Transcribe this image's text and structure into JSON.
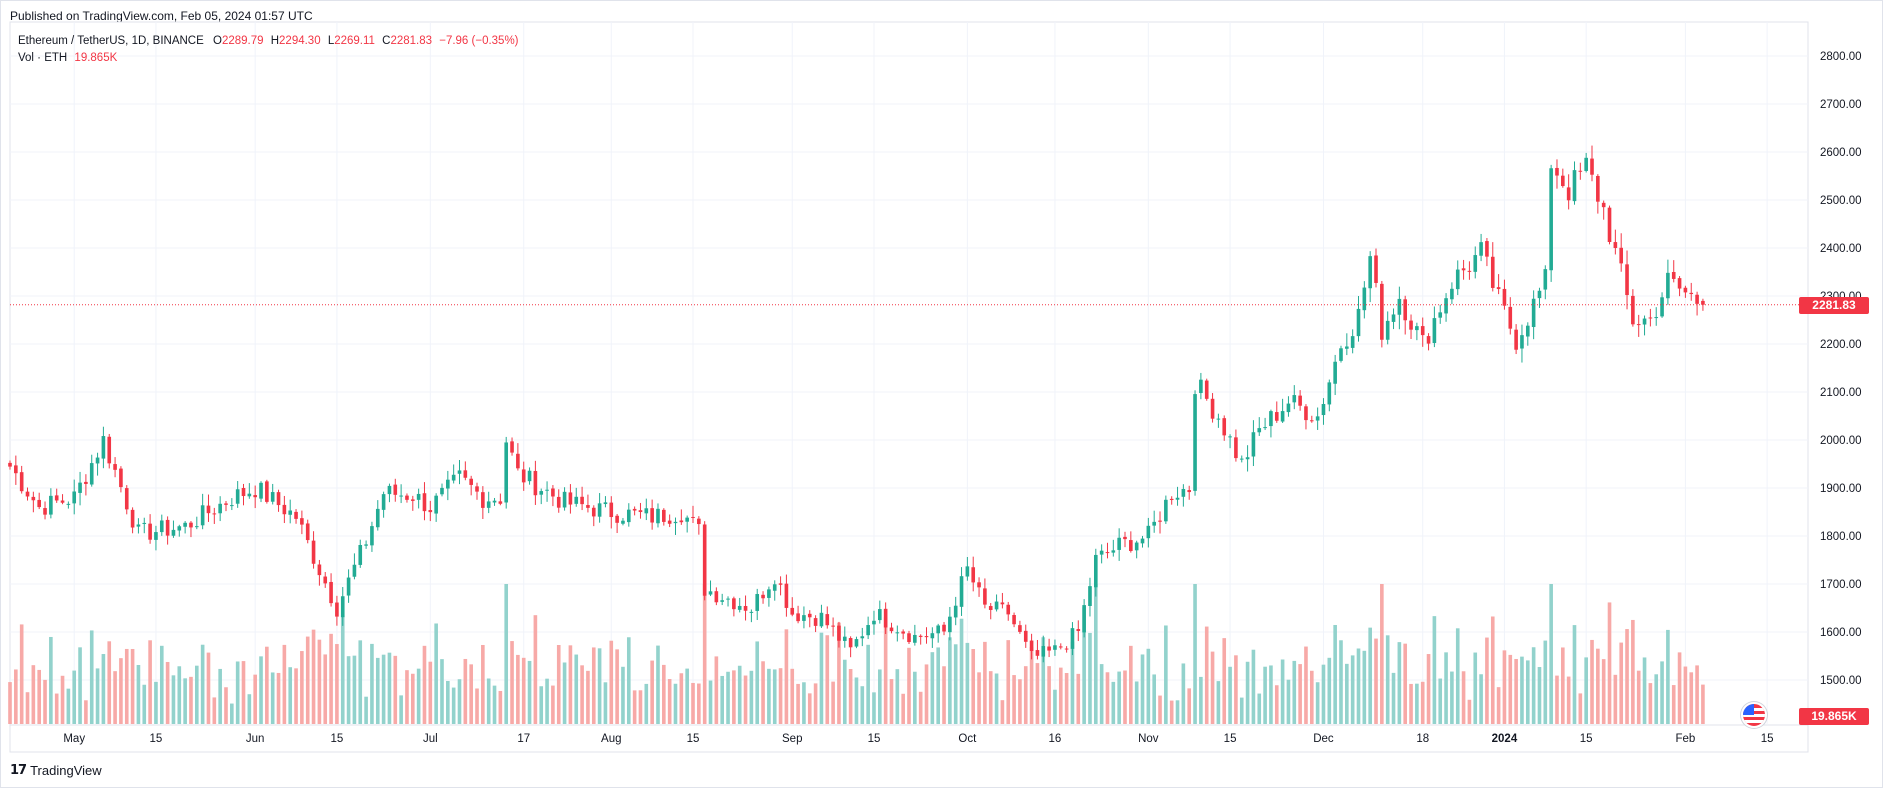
{
  "header": {
    "published": "Published on TradingView.com, Feb 05, 2024 01:57 UTC"
  },
  "legend": {
    "symbol": "Ethereum / TetherUS, 1D, BINANCE",
    "o_label": "O",
    "o_value": "2289.79",
    "h_label": "H",
    "h_value": "2294.30",
    "l_label": "L",
    "l_value": "2269.11",
    "c_label": "C",
    "c_value": "2281.83",
    "change": "−7.96 (−0.35%)",
    "vol_label": "Vol · ETH",
    "vol_value": "19.865K"
  },
  "price_axis": {
    "ticks": [
      "2800.00",
      "2700.00",
      "2600.00",
      "2500.00",
      "2400.00",
      "2300.00",
      "2200.00",
      "2100.00",
      "2000.00",
      "1900.00",
      "1800.00",
      "1700.00",
      "1600.00",
      "1500.00"
    ],
    "last_price_tag": "2281.83",
    "volume_tag": "19.865K"
  },
  "time_axis": {
    "labels": [
      "May",
      "15",
      "Jun",
      "15",
      "Jul",
      "17",
      "Aug",
      "15",
      "Sep",
      "15",
      "Oct",
      "16",
      "Nov",
      "15",
      "Dec",
      "18",
      "2024",
      "15",
      "Feb",
      "15"
    ]
  },
  "footer": {
    "brand": "TradingView"
  },
  "colors": {
    "up": "#22ab94",
    "down": "#f23645",
    "up_vol": "#92d2cc",
    "down_vol": "#f7a9a7",
    "grid": "#f0f3fa"
  },
  "chart_data": {
    "type": "candlestick",
    "title": "Ethereum / TetherUS, 1D, BINANCE",
    "ylim": [
      1440,
      2840
    ],
    "grid": true,
    "last_price": 2281.83,
    "anchors": [
      [
        "2023-04-20",
        1945
      ],
      [
        "2023-04-25",
        1860
      ],
      [
        "2023-05-01",
        1880
      ],
      [
        "2023-05-06",
        2000
      ],
      [
        "2023-05-12",
        1805
      ],
      [
        "2023-05-20",
        1820
      ],
      [
        "2023-05-28",
        1880
      ],
      [
        "2023-06-01",
        1900
      ],
      [
        "2023-06-08",
        1840
      ],
      [
        "2023-06-12",
        1730
      ],
      [
        "2023-06-15",
        1650
      ],
      [
        "2023-06-20",
        1790
      ],
      [
        "2023-06-23",
        1890
      ],
      [
        "2023-06-28",
        1885
      ],
      [
        "2023-07-01",
        1860
      ],
      [
        "2023-07-06",
        1920
      ],
      [
        "2023-07-10",
        1880
      ],
      [
        "2023-07-13",
        1880
      ],
      [
        "2023-07-14",
        2000
      ],
      [
        "2023-07-16",
        1930
      ],
      [
        "2023-07-24",
        1870
      ],
      [
        "2023-08-01",
        1850
      ],
      [
        "2023-08-08",
        1840
      ],
      [
        "2023-08-13",
        1850
      ],
      [
        "2023-08-16",
        1810
      ],
      [
        "2023-08-17",
        1690
      ],
      [
        "2023-08-25",
        1650
      ],
      [
        "2023-08-29",
        1720
      ],
      [
        "2023-09-01",
        1640
      ],
      [
        "2023-09-06",
        1630
      ],
      [
        "2023-09-11",
        1560
      ],
      [
        "2023-09-15",
        1640
      ],
      [
        "2023-09-22",
        1590
      ],
      [
        "2023-09-27",
        1600
      ],
      [
        "2023-09-29",
        1670
      ],
      [
        "2023-10-01",
        1730
      ],
      [
        "2023-10-04",
        1650
      ],
      [
        "2023-10-08",
        1640
      ],
      [
        "2023-10-12",
        1545
      ],
      [
        "2023-10-16",
        1560
      ],
      [
        "2023-10-20",
        1600
      ],
      [
        "2023-10-23",
        1750
      ],
      [
        "2023-10-27",
        1780
      ],
      [
        "2023-11-01",
        1800
      ],
      [
        "2023-11-05",
        1890
      ],
      [
        "2023-11-08",
        1900
      ],
      [
        "2023-11-09",
        2120
      ],
      [
        "2023-11-13",
        2050
      ],
      [
        "2023-11-17",
        1950
      ],
      [
        "2023-11-20",
        2020
      ],
      [
        "2023-11-25",
        2080
      ],
      [
        "2023-11-30",
        2050
      ],
      [
        "2023-12-04",
        2200
      ],
      [
        "2023-12-07",
        2260
      ],
      [
        "2023-12-09",
        2380
      ],
      [
        "2023-12-11",
        2230
      ],
      [
        "2023-12-14",
        2300
      ],
      [
        "2023-12-18",
        2200
      ],
      [
        "2023-12-23",
        2330
      ],
      [
        "2023-12-28",
        2390
      ],
      [
        "2023-12-31",
        2290
      ],
      [
        "2024-01-03",
        2210
      ],
      [
        "2024-01-08",
        2330
      ],
      [
        "2024-01-09",
        2580
      ],
      [
        "2024-01-12",
        2520
      ],
      [
        "2024-01-15",
        2570
      ],
      [
        "2024-01-18",
        2480
      ],
      [
        "2024-01-23",
        2250
      ],
      [
        "2024-01-26",
        2250
      ],
      [
        "2024-01-29",
        2330
      ],
      [
        "2024-02-04",
        2282
      ]
    ],
    "volume_ylim": [
      0,
      3
    ]
  }
}
